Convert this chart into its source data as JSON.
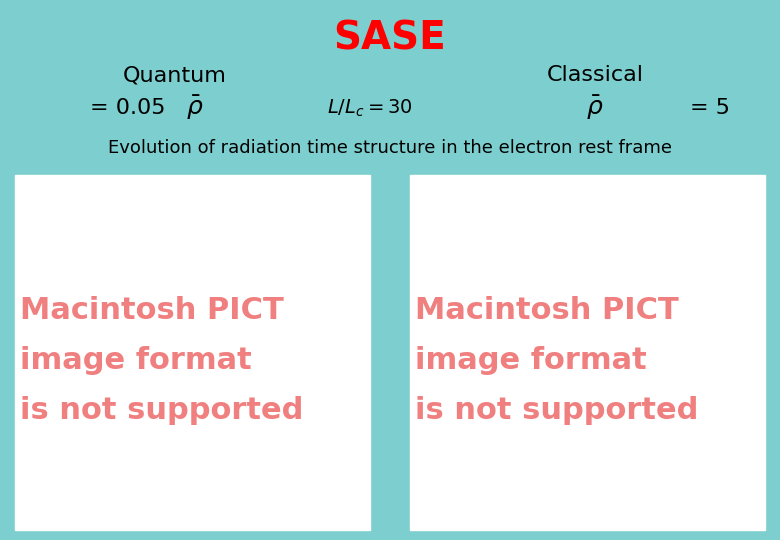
{
  "background_color": "#7DCFCF",
  "title": "SASE",
  "title_color": "#FF0000",
  "title_fontsize": 28,
  "quantum_label": "Quantum",
  "classical_label": "Classical",
  "quantum_value": "= 0.05",
  "classical_value": "= 5",
  "subtitle": "Evolution of radiation time structure in the electron rest frame",
  "subtitle_fontsize": 13,
  "pict_text_line1": "Macintosh PICT",
  "pict_text_line2": "image format",
  "pict_text_line3": "is not supported",
  "pict_text_color": "#F08080",
  "pict_bg_color": "#FFFFFF",
  "label_fontsize": 16,
  "value_fontsize": 16,
  "formula_fontsize": 14,
  "pict_fontsize": 22
}
